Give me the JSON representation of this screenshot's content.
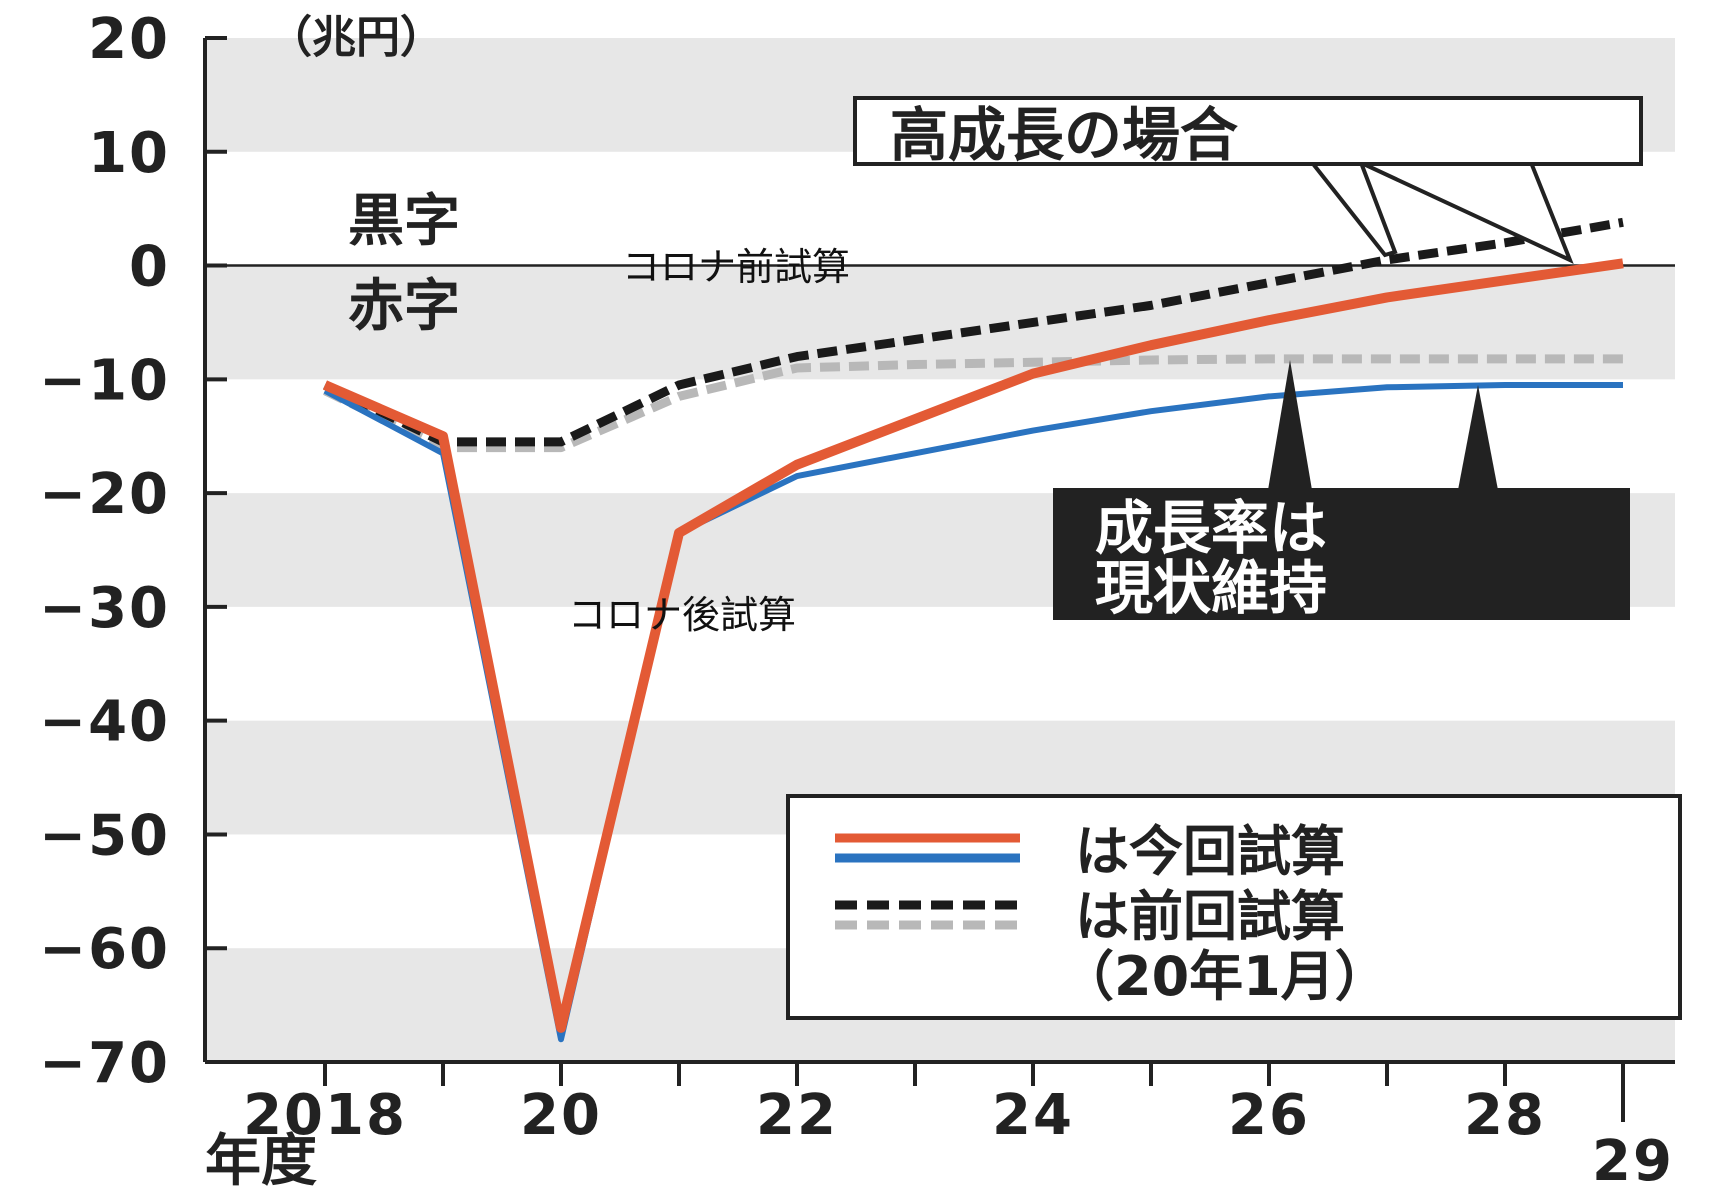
{
  "chart_data": {
    "type": "line",
    "unit": "（兆円）",
    "xlabel": "年度",
    "x_ticks": [
      {
        "x": 2018,
        "label": "2018"
      },
      {
        "x": 2019,
        "label": ""
      },
      {
        "x": 2020,
        "label": "20"
      },
      {
        "x": 2021,
        "label": ""
      },
      {
        "x": 2022,
        "label": "22"
      },
      {
        "x": 2023,
        "label": ""
      },
      {
        "x": 2024,
        "label": "24"
      },
      {
        "x": 2025,
        "label": ""
      },
      {
        "x": 2026,
        "label": "26"
      },
      {
        "x": 2027,
        "label": ""
      },
      {
        "x": 2028,
        "label": "28"
      },
      {
        "x": 2029,
        "label": "29"
      }
    ],
    "y_ticks": [
      20,
      10,
      0,
      -10,
      -20,
      -30,
      -40,
      -50,
      -60,
      -70
    ],
    "xlim": [
      2017.1,
      2029.4
    ],
    "ylim": [
      -70,
      20
    ],
    "grid": "horizontal bands",
    "zero_labels": {
      "above": "黒字",
      "below": "赤字"
    },
    "series": [
      {
        "id": "current_high",
        "color": "#e35a35",
        "style": "solid",
        "x": [
          2018,
          2019,
          2020,
          2021,
          2022,
          2023,
          2024,
          2025,
          2026,
          2027,
          2028,
          2029
        ],
        "y": [
          -10.5,
          -15,
          -67,
          -23.5,
          -17.5,
          -13.5,
          -9.5,
          -7,
          -4.8,
          -2.8,
          -1.3,
          0.2
        ]
      },
      {
        "id": "current_base",
        "color": "#2a73c0",
        "style": "solid",
        "x": [
          2018,
          2019,
          2020,
          2021,
          2022,
          2023,
          2024,
          2025,
          2026,
          2027,
          2028,
          2029
        ],
        "y": [
          -11,
          -16.5,
          -68,
          -23.5,
          -18.5,
          -16.5,
          -14.5,
          -12.8,
          -11.5,
          -10.7,
          -10.5,
          -10.5
        ]
      },
      {
        "id": "prev_high",
        "color": "#1a1a1a",
        "style": "dashed",
        "x": [
          2018,
          2019,
          2020,
          2021,
          2022,
          2023,
          2024,
          2025,
          2026,
          2027,
          2028,
          2029
        ],
        "y": [
          -10.5,
          -15.5,
          -15.5,
          -10.5,
          -8,
          -6.5,
          -5,
          -3.5,
          -1.5,
          0.5,
          2,
          3.8
        ]
      },
      {
        "id": "prev_base",
        "color": "#b8b8b8",
        "style": "dashed",
        "x": [
          2018,
          2019,
          2020,
          2021,
          2022,
          2023,
          2024,
          2025,
          2026,
          2027,
          2028,
          2029
        ],
        "y": [
          -11,
          -16,
          -16,
          -11.5,
          -9,
          -8.7,
          -8.5,
          -8.3,
          -8.2,
          -8.2,
          -8.2,
          -8.2
        ]
      }
    ],
    "annotations": {
      "pre_covid": "コロナ前試算",
      "post_covid": "コロナ後試算",
      "high_growth": "高成長の場合",
      "status_quo_line1": "成長率は",
      "status_quo_line2": "現状維持"
    },
    "legend": {
      "position": "bottom-right",
      "current": "は今回試算",
      "previous_line1": "は前回試算",
      "previous_line2": "（20年1月）"
    }
  },
  "colors": {
    "band": "#e7e7e7",
    "axis": "#222222",
    "red": "#e35a35",
    "blue": "#2a73c0",
    "dark_dash": "#1a1a1a",
    "grey_dash": "#b8b8b8"
  }
}
